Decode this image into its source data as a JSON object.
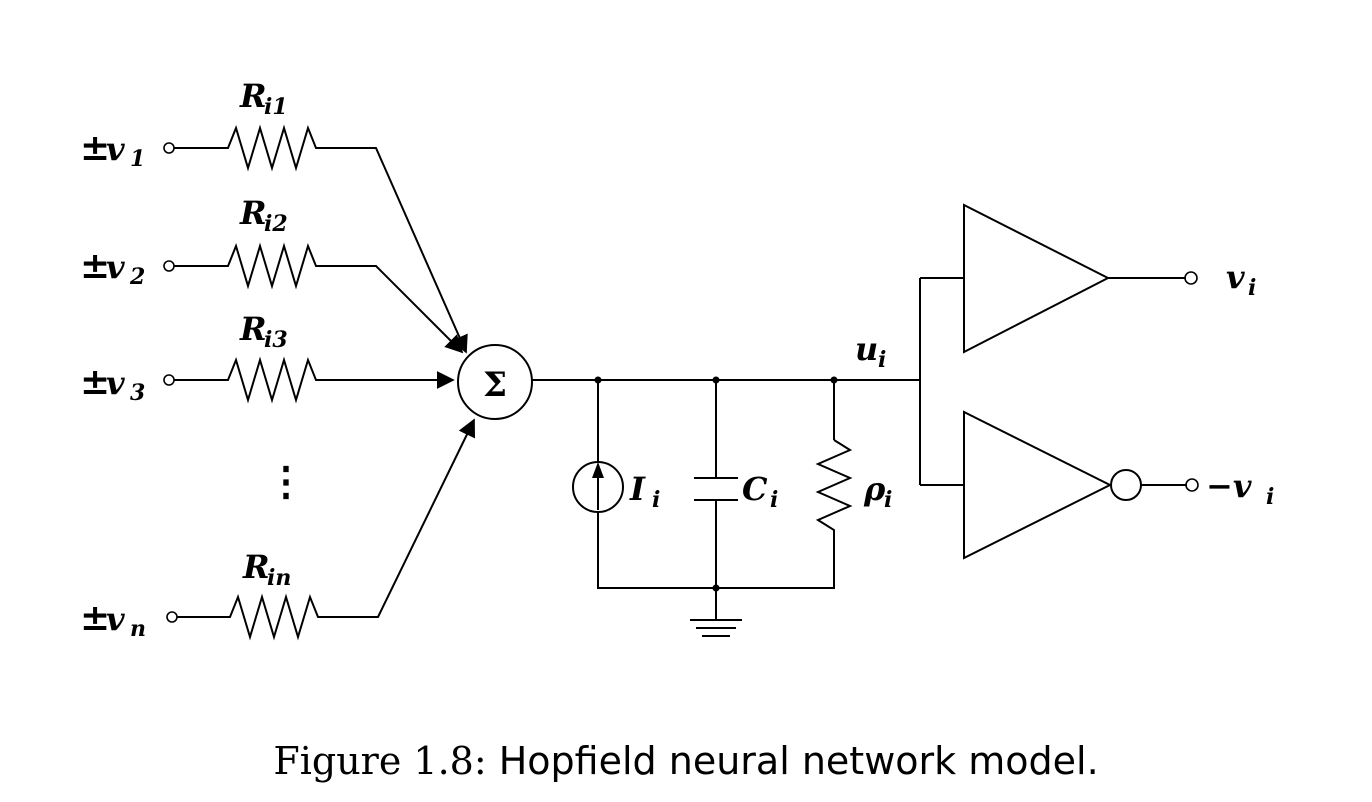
{
  "diagram": {
    "inputs": [
      {
        "sign": "±",
        "var": "v",
        "sub": "1",
        "resistor_main": "R",
        "resistor_sub": "i1"
      },
      {
        "sign": "±",
        "var": "v",
        "sub": "2",
        "resistor_main": "R",
        "resistor_sub": "i2"
      },
      {
        "sign": "±",
        "var": "v",
        "sub": "3",
        "resistor_main": "R",
        "resistor_sub": "i3"
      },
      {
        "sign": "±",
        "var": "v",
        "sub": "n",
        "resistor_main": "R",
        "resistor_sub": "in"
      }
    ],
    "ellipsis": "⋮",
    "summing_node": "Σ",
    "node_label": {
      "main": "u",
      "sub": "i"
    },
    "current_source": {
      "main": "I",
      "sub": "i"
    },
    "capacitor": {
      "main": "C",
      "sub": "i"
    },
    "resistor_rho": {
      "main": "ρ",
      "sub": "i"
    },
    "output_pos": {
      "main": "v",
      "sub": "i"
    },
    "output_neg": {
      "main": "−v",
      "sub": "i"
    }
  },
  "caption": {
    "figure": "Figure 1.8:",
    "text": "Hopfield neural network model."
  }
}
